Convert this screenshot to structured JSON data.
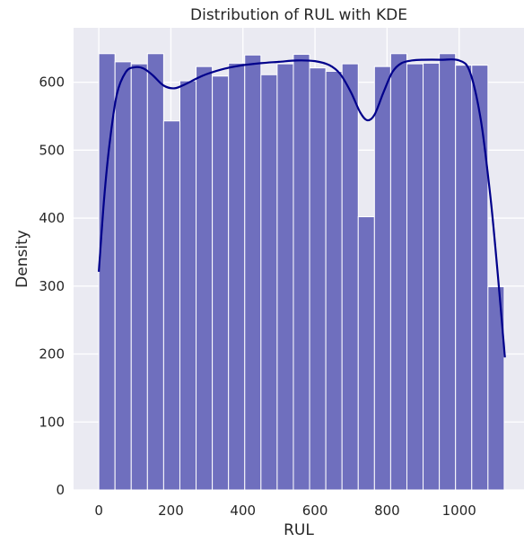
{
  "chart_data": {
    "type": "bar",
    "title": "Distribution of RUL with KDE",
    "xlabel": "RUL",
    "ylabel": "Density",
    "xlim": [
      -70,
      1180
    ],
    "ylim": [
      0,
      680
    ],
    "xticks": [
      0,
      200,
      400,
      600,
      800,
      1000
    ],
    "yticks": [
      0,
      100,
      200,
      300,
      400,
      500,
      600
    ],
    "xtick_labels": [
      "0",
      "200",
      "400",
      "600",
      "800",
      "1000"
    ],
    "ytick_labels": [
      "0",
      "100",
      "200",
      "300",
      "400",
      "500",
      "600"
    ],
    "grid": true,
    "colors": {
      "background": "#eaeaf2",
      "grid": "#ffffff",
      "bar_fill": "#6f6fbe",
      "bar_edge": "#ffffff",
      "kde_line": "#00008b",
      "text": "#262626"
    },
    "bins": [
      {
        "start": 0,
        "end": 45,
        "count": 642
      },
      {
        "start": 45,
        "end": 90,
        "count": 630
      },
      {
        "start": 90,
        "end": 135,
        "count": 627
      },
      {
        "start": 135,
        "end": 180,
        "count": 642
      },
      {
        "start": 180,
        "end": 225,
        "count": 543
      },
      {
        "start": 225,
        "end": 270,
        "count": 602
      },
      {
        "start": 270,
        "end": 315,
        "count": 623
      },
      {
        "start": 315,
        "end": 360,
        "count": 609
      },
      {
        "start": 360,
        "end": 405,
        "count": 628
      },
      {
        "start": 405,
        "end": 450,
        "count": 640
      },
      {
        "start": 450,
        "end": 495,
        "count": 611
      },
      {
        "start": 495,
        "end": 540,
        "count": 627
      },
      {
        "start": 540,
        "end": 585,
        "count": 641
      },
      {
        "start": 585,
        "end": 630,
        "count": 621
      },
      {
        "start": 630,
        "end": 675,
        "count": 616
      },
      {
        "start": 675,
        "end": 720,
        "count": 627
      },
      {
        "start": 720,
        "end": 765,
        "count": 402
      },
      {
        "start": 765,
        "end": 810,
        "count": 623
      },
      {
        "start": 810,
        "end": 855,
        "count": 642
      },
      {
        "start": 855,
        "end": 900,
        "count": 627
      },
      {
        "start": 900,
        "end": 945,
        "count": 628
      },
      {
        "start": 945,
        "end": 990,
        "count": 642
      },
      {
        "start": 990,
        "end": 1035,
        "count": 625
      },
      {
        "start": 1035,
        "end": 1080,
        "count": 625
      },
      {
        "start": 1080,
        "end": 1125,
        "count": 299
      }
    ],
    "kde": {
      "x": [
        0,
        15,
        30,
        50,
        75,
        100,
        125,
        150,
        180,
        210,
        240,
        270,
        300,
        350,
        400,
        450,
        500,
        550,
        600,
        640,
        670,
        700,
        725,
        745,
        765,
        790,
        815,
        840,
        870,
        900,
        950,
        1000,
        1030,
        1060,
        1085,
        1100,
        1115,
        1127
      ],
      "y": [
        321,
        430,
        510,
        582,
        615,
        622,
        620,
        610,
        595,
        591,
        597,
        605,
        612,
        620,
        625,
        628,
        630,
        632,
        631,
        625,
        612,
        585,
        556,
        544,
        552,
        585,
        615,
        628,
        632,
        633,
        633,
        632,
        615,
        545,
        440,
        360,
        270,
        195
      ]
    }
  }
}
